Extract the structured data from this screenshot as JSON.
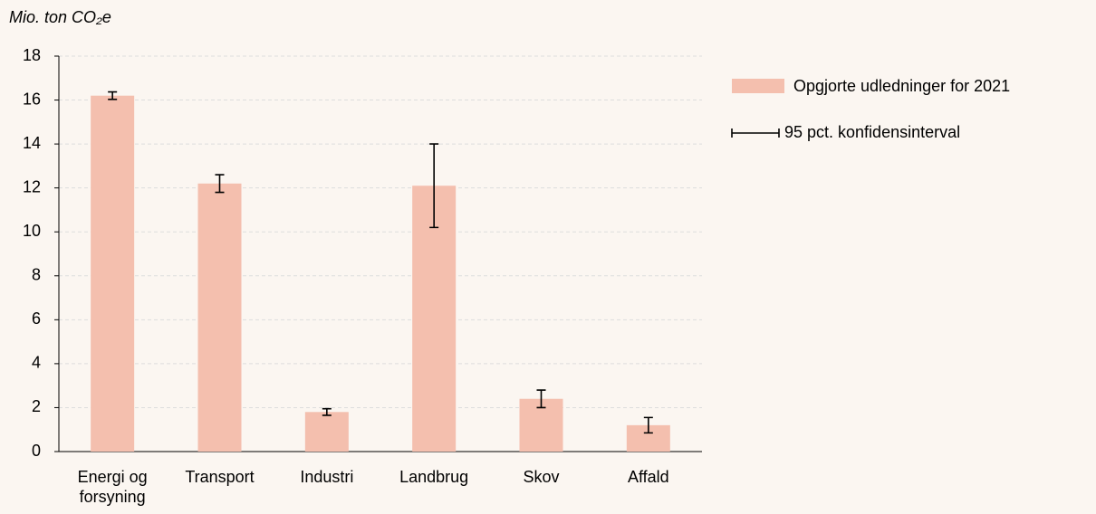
{
  "chart_data": {
    "type": "bar",
    "y_label": "Mio. ton CO₂e",
    "categories": [
      "Energi og forsyning",
      "Transport",
      "Industri",
      "Landbrug",
      "Skov",
      "Affald"
    ],
    "series": [
      {
        "name": "Opgjorte udledninger for 2021",
        "color": "#f4bfae",
        "values": [
          16.2,
          12.2,
          1.8,
          12.1,
          2.4,
          1.2
        ],
        "errors": [
          0.17,
          0.4,
          0.15,
          1.9,
          0.4,
          0.35
        ]
      }
    ],
    "error_label": "95 pct. konfidensinterval",
    "ylim": [
      0,
      18
    ],
    "yticks": [
      0,
      2,
      4,
      6,
      8,
      10,
      12,
      14,
      16,
      18
    ],
    "grid": true,
    "legend": "right"
  }
}
